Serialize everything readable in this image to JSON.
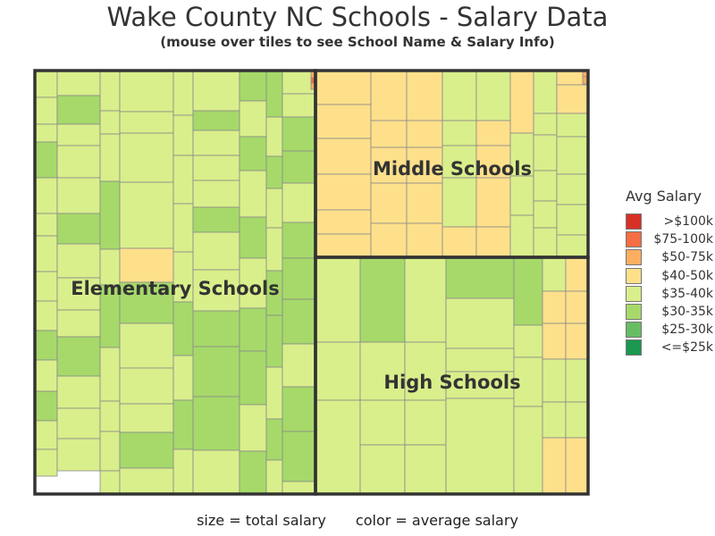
{
  "title": "Wake County NC Schools - Salary Data",
  "subtitle": "(mouse over tiles to see School Name & Salary Info)",
  "footer": {
    "size_note": "size = total salary",
    "color_note": "color = average salary"
  },
  "colors": {
    "gt100k": "#d73027",
    "75_100k": "#f46d43",
    "50_75k": "#fdae61",
    "40_50k": "#fee08b",
    "35_40k": "#d9ef8b",
    "30_35k": "#a6d96a",
    "25_30k": "#66bd63",
    "le25k": "#1a9850"
  },
  "chart_data": {
    "type": "treemap",
    "title": "Wake County NC Schools - Salary Data",
    "legend": {
      "title": "Avg Salary",
      "placement": "right",
      "entries": [
        {
          "label": ">$100k",
          "color": "#d73027"
        },
        {
          "label": "$75-100k",
          "color": "#f46d43"
        },
        {
          "label": "$50-75k",
          "color": "#fdae61"
        },
        {
          "label": "$40-50k",
          "color": "#fee08b"
        },
        {
          "label": "$35-40k",
          "color": "#d9ef8b"
        },
        {
          "label": "$30-35k",
          "color": "#a6d96a"
        },
        {
          "label": "$25-30k",
          "color": "#66bd63"
        },
        {
          "label": "<=$25k",
          "color": "#1a9850"
        }
      ]
    },
    "groups": [
      {
        "name": "Elementary Schools",
        "share": 0.52,
        "dominant_salary_band": "$35-40k"
      },
      {
        "name": "Middle Schools",
        "share": 0.2,
        "dominant_salary_band": "$40-50k"
      },
      {
        "name": "High Schools",
        "share": 0.28,
        "dominant_salary_band": "$35-40k"
      }
    ]
  }
}
